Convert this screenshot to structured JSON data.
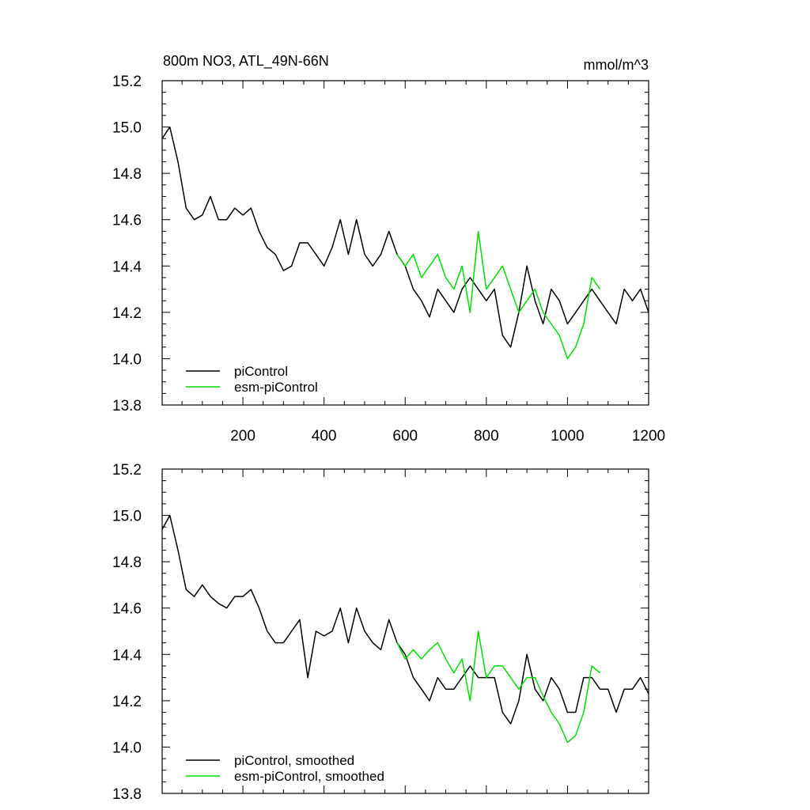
{
  "chart_data": [
    {
      "type": "line",
      "title": "800m NO3, ATL_49N-66N",
      "units": "mmol/m^3",
      "xlim": [
        1,
        1200
      ],
      "ylim": [
        13.8,
        15.2
      ],
      "x_ticks": [
        200,
        400,
        600,
        800,
        1000,
        1200
      ],
      "x_tick_labels": [
        "200",
        "400",
        "600",
        "800",
        "1000",
        "1200"
      ],
      "y_ticks": [
        13.8,
        14.0,
        14.2,
        14.4,
        14.6,
        14.8,
        15.0,
        15.2
      ],
      "y_tick_labels": [
        "13.8",
        "14.0",
        "14.2",
        "14.4",
        "14.6",
        "14.8",
        "15.0",
        "15.2"
      ],
      "grid": false,
      "legend": "bottom-left",
      "series": [
        {
          "name": "piControl",
          "color": "#000000",
          "x": [
            1,
            20,
            40,
            60,
            80,
            100,
            120,
            140,
            160,
            180,
            200,
            220,
            240,
            260,
            280,
            300,
            320,
            340,
            360,
            380,
            400,
            420,
            440,
            460,
            480,
            500,
            520,
            540,
            560,
            580,
            600,
            620,
            640,
            660,
            680,
            700,
            720,
            740,
            760,
            780,
            800,
            820,
            840,
            860,
            880,
            900,
            920,
            940,
            960,
            980,
            1000,
            1020,
            1040,
            1060,
            1080,
            1100,
            1120,
            1140,
            1160,
            1180,
            1200
          ],
          "y": [
            14.95,
            15.0,
            14.85,
            14.65,
            14.6,
            14.62,
            14.7,
            14.6,
            14.6,
            14.65,
            14.62,
            14.65,
            14.55,
            14.48,
            14.45,
            14.38,
            14.4,
            14.5,
            14.5,
            14.45,
            14.4,
            14.48,
            14.6,
            14.45,
            14.6,
            14.45,
            14.4,
            14.45,
            14.55,
            14.45,
            14.4,
            14.3,
            14.25,
            14.18,
            14.3,
            14.25,
            14.2,
            14.3,
            14.35,
            14.3,
            14.25,
            14.3,
            14.1,
            14.05,
            14.2,
            14.4,
            14.25,
            14.15,
            14.3,
            14.25,
            14.15,
            14.2,
            14.25,
            14.3,
            14.25,
            14.2,
            14.15,
            14.3,
            14.25,
            14.3,
            14.2
          ]
        },
        {
          "name": "esm-piControl",
          "color": "#00dd00",
          "x": [
            580,
            600,
            620,
            640,
            660,
            680,
            700,
            720,
            740,
            760,
            780,
            800,
            820,
            840,
            860,
            880,
            900,
            920,
            940,
            960,
            980,
            1000,
            1020,
            1040,
            1060,
            1080
          ],
          "y": [
            14.45,
            14.4,
            14.45,
            14.35,
            14.4,
            14.45,
            14.35,
            14.3,
            14.4,
            14.2,
            14.55,
            14.3,
            14.35,
            14.4,
            14.3,
            14.2,
            14.25,
            14.3,
            14.2,
            14.15,
            14.1,
            14.0,
            14.05,
            14.15,
            14.35,
            14.3
          ]
        }
      ]
    },
    {
      "type": "line",
      "xlim": [
        1,
        1200
      ],
      "ylim": [
        13.8,
        15.2
      ],
      "y_ticks": [
        13.8,
        14.0,
        14.2,
        14.4,
        14.6,
        14.8,
        15.0,
        15.2
      ],
      "y_tick_labels": [
        "13.8",
        "14.0",
        "14.2",
        "14.4",
        "14.6",
        "14.8",
        "15.0",
        "15.2"
      ],
      "grid": false,
      "legend": "bottom-left",
      "series": [
        {
          "name": "piControl, smoothed",
          "color": "#000000",
          "x": [
            1,
            20,
            40,
            60,
            80,
            100,
            120,
            140,
            160,
            180,
            200,
            220,
            240,
            260,
            280,
            300,
            320,
            340,
            360,
            380,
            400,
            420,
            440,
            460,
            480,
            500,
            520,
            540,
            560,
            580,
            600,
            620,
            640,
            660,
            680,
            700,
            720,
            740,
            760,
            780,
            800,
            820,
            840,
            860,
            880,
            900,
            920,
            940,
            960,
            980,
            1000,
            1020,
            1040,
            1060,
            1080,
            1100,
            1120,
            1140,
            1160,
            1180,
            1200
          ],
          "y": [
            14.94,
            15.0,
            14.85,
            14.68,
            14.65,
            14.7,
            14.65,
            14.62,
            14.6,
            14.65,
            14.65,
            14.68,
            14.6,
            14.5,
            14.45,
            14.45,
            14.5,
            14.55,
            14.3,
            14.5,
            14.48,
            14.5,
            14.6,
            14.45,
            14.6,
            14.5,
            14.45,
            14.42,
            14.55,
            14.45,
            14.4,
            14.3,
            14.25,
            14.2,
            14.3,
            14.25,
            14.25,
            14.3,
            14.35,
            14.3,
            14.3,
            14.3,
            14.15,
            14.1,
            14.2,
            14.4,
            14.25,
            14.2,
            14.3,
            14.25,
            14.15,
            14.15,
            14.3,
            14.3,
            14.25,
            14.25,
            14.15,
            14.25,
            14.25,
            14.3,
            14.23
          ]
        },
        {
          "name": "esm-piControl, smoothed",
          "color": "#00dd00",
          "x": [
            580,
            600,
            620,
            640,
            660,
            680,
            700,
            720,
            740,
            760,
            780,
            800,
            820,
            840,
            860,
            880,
            900,
            920,
            940,
            960,
            980,
            1000,
            1020,
            1040,
            1060,
            1080
          ],
          "y": [
            14.45,
            14.38,
            14.42,
            14.38,
            14.42,
            14.45,
            14.38,
            14.32,
            14.38,
            14.2,
            14.5,
            14.3,
            14.35,
            14.35,
            14.3,
            14.25,
            14.3,
            14.3,
            14.22,
            14.15,
            14.1,
            14.02,
            14.05,
            14.15,
            14.35,
            14.32
          ]
        }
      ]
    }
  ]
}
